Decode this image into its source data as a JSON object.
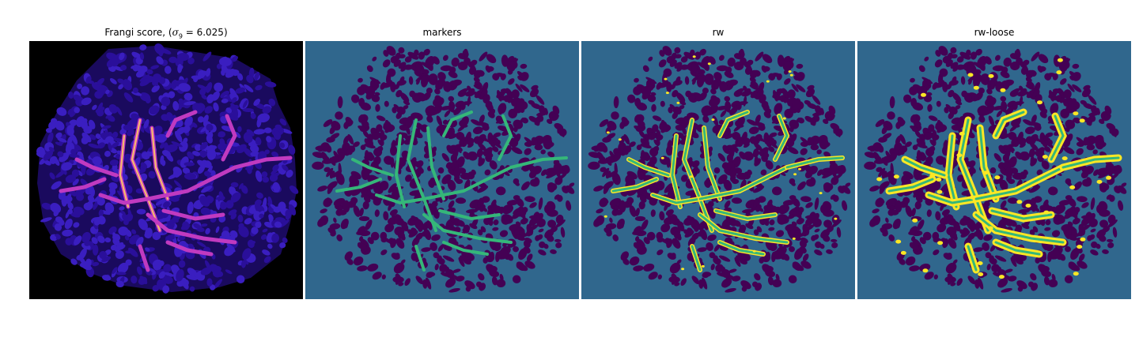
{
  "panels": [
    {
      "id": "frangi",
      "title_text": "Frangi score, (",
      "title_math": "σ",
      "title_sub": "9",
      "title_tail": " = 6.025)",
      "background": "#000000",
      "blob_color": "#2a0f9a",
      "blob_edge": "#3a1ec0",
      "vessel_color": "#c03ac0",
      "vessel_hot": "#f7c06a"
    },
    {
      "id": "markers",
      "title": "markers",
      "background": "#30678d",
      "blob_color": "#440154",
      "vessel_color": "#35b779"
    },
    {
      "id": "rw",
      "title": "rw",
      "background": "#30678d",
      "blob_color": "#440154",
      "vessel_color": "#35b779",
      "vessel_edge": "#fde725"
    },
    {
      "id": "rw-loose",
      "title": "rw-loose",
      "background": "#30678d",
      "blob_color": "#440154",
      "vessel_color": "#35b779",
      "vessel_edge": "#fde725"
    }
  ]
}
